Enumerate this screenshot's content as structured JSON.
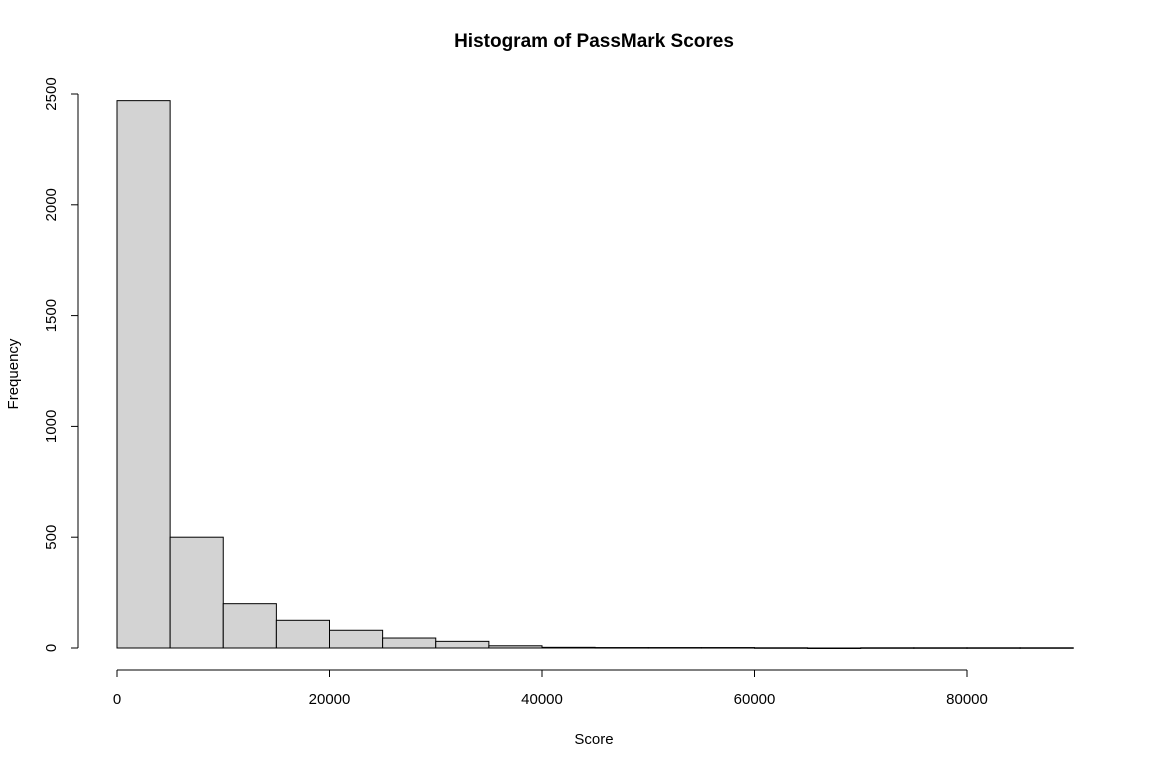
{
  "chart_data": {
    "type": "bar",
    "title": "Histogram of PassMark Scores",
    "xlabel": "Score",
    "ylabel": "Frequency",
    "bin_width": 5000,
    "bins": [
      {
        "start": 0,
        "end": 5000,
        "count": 2470
      },
      {
        "start": 5000,
        "end": 10000,
        "count": 500
      },
      {
        "start": 10000,
        "end": 15000,
        "count": 200
      },
      {
        "start": 15000,
        "end": 20000,
        "count": 125
      },
      {
        "start": 20000,
        "end": 25000,
        "count": 80
      },
      {
        "start": 25000,
        "end": 30000,
        "count": 45
      },
      {
        "start": 30000,
        "end": 35000,
        "count": 30
      },
      {
        "start": 35000,
        "end": 40000,
        "count": 10
      },
      {
        "start": 40000,
        "end": 45000,
        "count": 3
      },
      {
        "start": 45000,
        "end": 50000,
        "count": 2
      },
      {
        "start": 50000,
        "end": 55000,
        "count": 2
      },
      {
        "start": 55000,
        "end": 60000,
        "count": 2
      },
      {
        "start": 60000,
        "end": 65000,
        "count": 1
      },
      {
        "start": 65000,
        "end": 70000,
        "count": 0
      },
      {
        "start": 70000,
        "end": 75000,
        "count": 1
      },
      {
        "start": 75000,
        "end": 80000,
        "count": 1
      },
      {
        "start": 80000,
        "end": 85000,
        "count": 1
      },
      {
        "start": 85000,
        "end": 90000,
        "count": 1
      }
    ],
    "x_ticks": [
      0,
      20000,
      40000,
      60000,
      80000
    ],
    "y_ticks": [
      0,
      500,
      1000,
      1500,
      2000,
      2500
    ],
    "xlim": [
      0,
      80000
    ],
    "ylim": [
      0,
      2500
    ],
    "colors": {
      "bar_fill": "#d3d3d3",
      "bar_stroke": "#000000"
    }
  }
}
